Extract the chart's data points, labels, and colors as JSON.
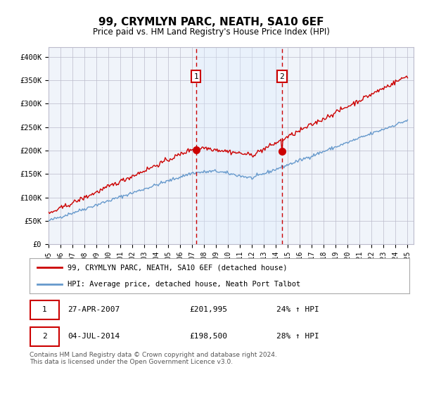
{
  "title": "99, CRYMLYN PARC, NEATH, SA10 6EF",
  "subtitle": "Price paid vs. HM Land Registry's House Price Index (HPI)",
  "ylim": [
    0,
    420000
  ],
  "yticks": [
    0,
    50000,
    100000,
    150000,
    200000,
    250000,
    300000,
    350000,
    400000
  ],
  "ytick_labels": [
    "£0",
    "£50K",
    "£100K",
    "£150K",
    "£200K",
    "£250K",
    "£300K",
    "£350K",
    "£400K"
  ],
  "sale1_price": 201995,
  "sale2_price": 198500,
  "sale1_x": 2007.32,
  "sale2_x": 2014.5,
  "red_line_color": "#cc0000",
  "blue_line_color": "#6699cc",
  "marker_color": "#cc0000",
  "dashed_line_color": "#cc0000",
  "shade_color": "#ddeeff",
  "grid_color": "#bbbbcc",
  "box_color": "#cc0000",
  "legend_line1": "99, CRYMLYN PARC, NEATH, SA10 6EF (detached house)",
  "legend_line2": "HPI: Average price, detached house, Neath Port Talbot",
  "table_row1": [
    "1",
    "27-APR-2007",
    "£201,995",
    "24% ↑ HPI"
  ],
  "table_row2": [
    "2",
    "04-JUL-2014",
    "£198,500",
    "28% ↑ HPI"
  ],
  "footnote": "Contains HM Land Registry data © Crown copyright and database right 2024.\nThis data is licensed under the Open Government Licence v3.0.",
  "background_color": "#ffffff",
  "plot_bg_color": "#f0f4fa"
}
